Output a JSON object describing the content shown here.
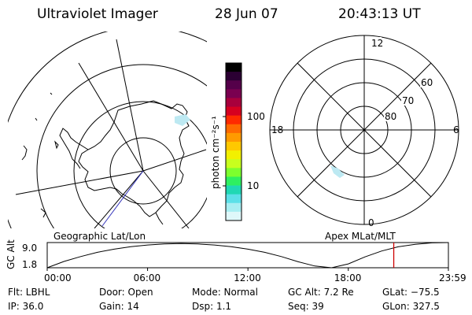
{
  "header": {
    "instrument": "Ultraviolet Imager",
    "date": "28 Jun 07",
    "time": "20:43:13 UT"
  },
  "geo_panel": {
    "label": "Geographic Lat/Lon"
  },
  "mag_panel": {
    "label": "Apex MLat/MLT",
    "hour_labels": [
      "12",
      "18",
      "6",
      "0"
    ],
    "lat_labels": [
      "60",
      "70",
      "80"
    ]
  },
  "colorbar": {
    "unit_label": "photon cm⁻²s⁻¹",
    "ticks": [
      "100",
      "10"
    ],
    "colors": [
      "#000000",
      "#2b0033",
      "#55004a",
      "#7a0050",
      "#a8003c",
      "#d60020",
      "#ff2a00",
      "#ff6a00",
      "#ff9a00",
      "#ffc800",
      "#f2f000",
      "#c8ff1e",
      "#7dff2e",
      "#2ef060",
      "#20d8b4",
      "#5ce0e8",
      "#a8eef2",
      "#dff8fa"
    ]
  },
  "chart_data": {
    "type": "line",
    "title": "",
    "ylabel": "GC Alt",
    "ytick_labels": [
      "9.0",
      "1.8"
    ],
    "ylim": [
      1.8,
      9.0
    ],
    "xlim": [
      0,
      1439
    ],
    "xtick_labels": [
      "00:00",
      "06:00",
      "12:00",
      "18:00",
      "23:59"
    ],
    "x_minutes": [
      0,
      60,
      120,
      180,
      240,
      300,
      360,
      420,
      480,
      540,
      600,
      660,
      720,
      780,
      840,
      900,
      960,
      1020,
      1080,
      1140,
      1200,
      1260,
      1320,
      1380,
      1439
    ],
    "series": [
      {
        "values": [
          1.8,
          3.6,
          5.0,
          6.2,
          7.1,
          7.8,
          8.3,
          8.6,
          8.7,
          8.6,
          8.3,
          7.8,
          7.1,
          6.2,
          5.0,
          3.5,
          2.3,
          1.8,
          2.9,
          4.9,
          6.6,
          7.8,
          8.5,
          8.9,
          9.0
        ]
      }
    ],
    "current_time_minutes": 1243,
    "marker_color": "#cc0000"
  },
  "status": {
    "filter": "Flt: LBHL",
    "ip": "IP: 36.0",
    "door": "Door: Open",
    "gain": "Gain: 14",
    "mode": "Mode: Normal",
    "dsp": "Dsp:    1.1",
    "gc_alt": "GC Alt: 7.2 Re",
    "seq": "Seq: 39",
    "glat": "GLat: −75.5",
    "glon": "GLon: 327.5"
  }
}
